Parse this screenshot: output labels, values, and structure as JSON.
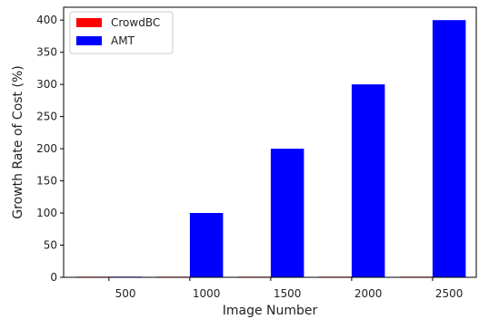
{
  "chart_data": {
    "type": "bar",
    "categories": [
      "500",
      "1000",
      "1500",
      "2000",
      "2500"
    ],
    "series": [
      {
        "name": "CrowdBC",
        "color": "#ff0000",
        "values": [
          1,
          1,
          1,
          1,
          1
        ]
      },
      {
        "name": "AMT",
        "color": "#0000ff",
        "values": [
          1,
          100,
          200,
          300,
          400
        ]
      }
    ],
    "xlabel": "Image Number",
    "ylabel": "Growth Rate of Cost (%)",
    "ylim": [
      0,
      420
    ],
    "yticks": [
      "0",
      "50",
      "100",
      "150",
      "200",
      "250",
      "300",
      "350",
      "400"
    ],
    "grid": false,
    "legend_position": "top-left"
  }
}
